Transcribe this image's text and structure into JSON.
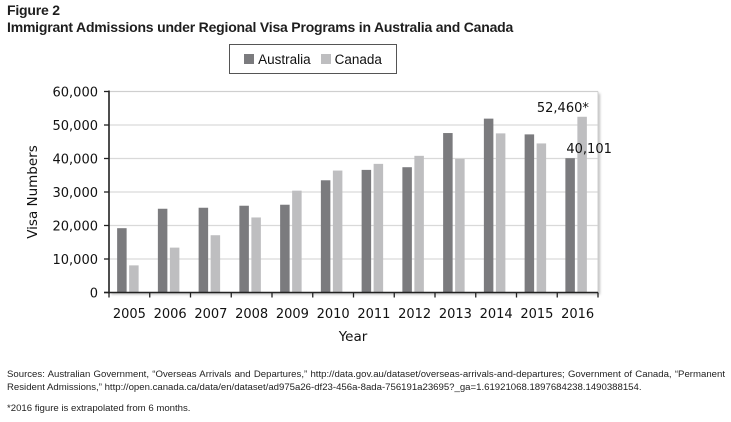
{
  "figure": {
    "label": "Figure 2",
    "title": "Immigrant Admissions under Regional Visa Programs in Australia and Canada"
  },
  "colors": {
    "australia": "#7b7b7e",
    "canada": "#bebec0",
    "gridline": "#d9d9d9",
    "axis": "#222222"
  },
  "chart_data": {
    "type": "bar",
    "title": "Immigrant Admissions under Regional Visa Programs in Australia and Canada",
    "xlabel": "Year",
    "ylabel": "Visa Numbers",
    "ylim": [
      0,
      60000
    ],
    "yticks": [
      0,
      10000,
      20000,
      30000,
      40000,
      50000,
      60000
    ],
    "ytick_labels": [
      "0",
      "10,000",
      "20,000",
      "30,000",
      "40,000",
      "50,000",
      "60,000"
    ],
    "grid": true,
    "legend_position": "top-center",
    "categories": [
      "2005",
      "2006",
      "2007",
      "2008",
      "2009",
      "2010",
      "2011",
      "2012",
      "2013",
      "2014",
      "2015",
      "2016"
    ],
    "series": [
      {
        "name": "Australia",
        "values": [
          19200,
          25000,
          25300,
          25900,
          26200,
          33500,
          36600,
          37400,
          47600,
          51900,
          47200,
          40101
        ]
      },
      {
        "name": "Canada",
        "values": [
          8100,
          13400,
          17100,
          22400,
          30400,
          36400,
          38400,
          40800,
          39900,
          47500,
          44500,
          52460
        ]
      }
    ],
    "annotations": [
      {
        "series": "Australia",
        "category": "2016",
        "text": "40,101"
      },
      {
        "series": "Canada",
        "category": "2016",
        "text": "52,460*"
      }
    ]
  },
  "footer": {
    "sources": "Sources: Australian Government, “Overseas Arrivals and Departures,” http://data.gov.au/dataset/overseas-arrivals-and-departures; Government of Canada, “Permanent Resident Admissions,” http://open.canada.ca/data/en/dataset/ad975a26-df23-456a-8ada-756191a23695?_ga=1.61921068.1897684238.1490388154.",
    "note": "*2016 figure is extrapolated from 6 months."
  }
}
